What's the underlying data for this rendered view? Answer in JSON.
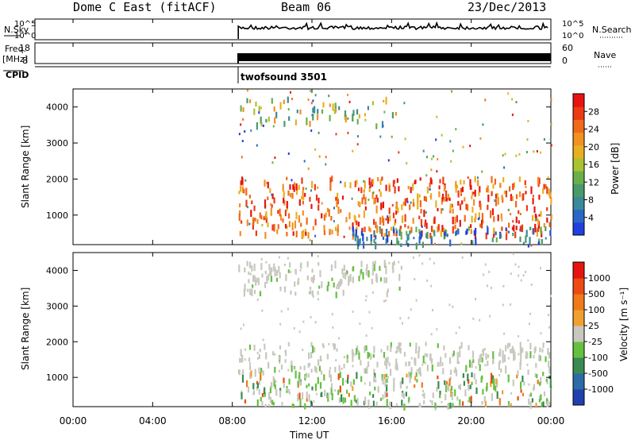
{
  "header": {
    "station": "Dome C East (fitACF)",
    "beam": "Beam 06",
    "date": "23/Dec/2013"
  },
  "panels": {
    "nsky": {
      "label": "N.Sky",
      "ticks": [
        "10^5",
        "10^0"
      ],
      "right_label": "N.Search",
      "right_ticks": [
        "10^5",
        "10^0"
      ]
    },
    "freq": {
      "label_top": "Freq.",
      "label_bottom": "[MHz]",
      "ticks": [
        "18",
        "8"
      ],
      "right_label": "Nave",
      "right_ticks": [
        "60",
        "0"
      ]
    },
    "cpid": {
      "label": "CPID",
      "value": "twofsound 3501"
    }
  },
  "chart_data": [
    {
      "type": "heatmap",
      "name": "power",
      "ylabel": "Slant Range [km]",
      "ylim": [
        180,
        4500
      ],
      "yticks": [
        1000,
        2000,
        3000,
        4000
      ],
      "xlim_hours": [
        0,
        24
      ],
      "data_start_hour": 8.3,
      "colorbar": {
        "label": "Power [dB]",
        "range": [
          0,
          32
        ],
        "ticks": [
          4,
          8,
          12,
          16,
          20,
          24,
          28
        ],
        "colors": [
          "#1f3fe0",
          "#2a68c6",
          "#3a8a9a",
          "#4a9a6a",
          "#6ab04a",
          "#a8c430",
          "#e8b020",
          "#f39020",
          "#f06a18",
          "#ee3a14",
          "#e81410"
        ]
      },
      "bands": [
        {
          "from_km": 500,
          "to_km": 2100,
          "t_start": 8.3,
          "t_end": 24,
          "level": "high"
        },
        {
          "from_km": 200,
          "to_km": 700,
          "t_start": 14,
          "t_end": 24,
          "level": "low"
        },
        {
          "from_km": 3500,
          "to_km": 4300,
          "t_start": 8.3,
          "t_end": 16.5,
          "level": "mid"
        }
      ]
    },
    {
      "type": "heatmap",
      "name": "velocity",
      "ylabel": "Slant Range [km]",
      "ylim": [
        180,
        4500
      ],
      "yticks": [
        1000,
        2000,
        3000,
        4000
      ],
      "xlim_hours": [
        0,
        24
      ],
      "data_start_hour": 8.3,
      "colorbar": {
        "label": "Velocity  [m s⁻¹]",
        "ticks": [
          "1000",
          "500",
          "100",
          "25",
          "-25",
          "-100",
          "-500",
          "-1000"
        ],
        "colors": [
          "#2040b0",
          "#2c6aa8",
          "#3a8a50",
          "#66c040",
          "#c8c8c0",
          "#f0a030",
          "#f07a18",
          "#ee4a14",
          "#e81410"
        ]
      },
      "bands": [
        {
          "from_km": 1200,
          "to_km": 2000,
          "t_start": 8.3,
          "t_end": 24,
          "level": "grey"
        },
        {
          "from_km": 250,
          "to_km": 1200,
          "t_start": 8.3,
          "t_end": 24,
          "level": "green"
        },
        {
          "from_km": 3400,
          "to_km": 4300,
          "t_start": 8.3,
          "t_end": 16.5,
          "level": "grey"
        }
      ]
    }
  ],
  "xaxis": {
    "ticks": [
      "00:00",
      "04:00",
      "08:00",
      "12:00",
      "16:00",
      "20:00",
      "00:00"
    ],
    "label": "Time UT"
  }
}
